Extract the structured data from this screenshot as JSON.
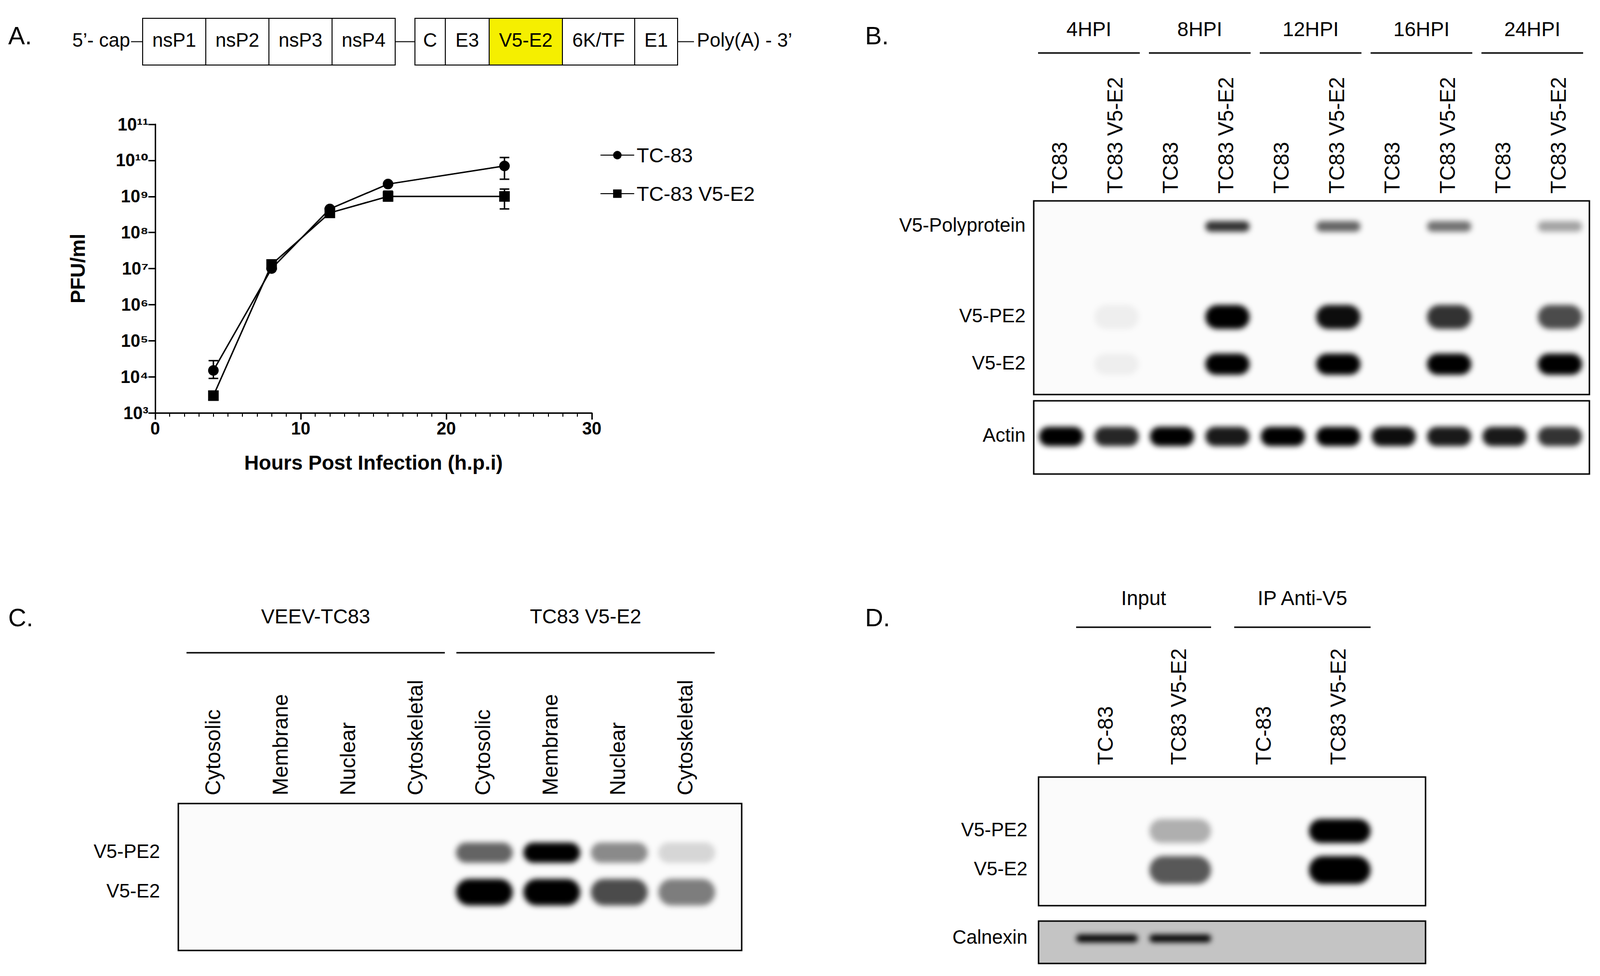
{
  "panel_labels": [
    "A.",
    "B.",
    "C.",
    "D."
  ],
  "schematic": {
    "start": "5’- cap",
    "nonstructural": [
      "nsP1",
      "nsP2",
      "nsP3",
      "nsP4"
    ],
    "structural": [
      "C",
      "E3",
      "V5-E2",
      "6K/TF",
      "E1"
    ],
    "highlight": "V5-E2",
    "color": "#f5ef00",
    "end": "Poly(A) - 3’"
  },
  "chart_data": {
    "type": "line",
    "xlabel": "Hours Post Infection (h.p.i)",
    "ylabel": "PFU/ml",
    "x": [
      4,
      8,
      12,
      16,
      24
    ],
    "series": [
      {
        "name": "TC-83",
        "color": "#000000",
        "marker": "circle",
        "values": [
          15000,
          10000000,
          450000000,
          2200000000,
          7000000000
        ],
        "error_bars": [
          [
            9000,
            28000
          ],
          null,
          null,
          null,
          [
            3000000000,
            12000000000
          ]
        ]
      },
      {
        "name": "TC-83 V5-E2",
        "color": "#000000",
        "marker": "square",
        "values": [
          3000,
          13000000,
          350000000,
          1000000000,
          1000000000
        ],
        "error_bars": [
          null,
          null,
          null,
          [
            750000000,
            1400000000
          ],
          [
            450000000,
            1600000000
          ]
        ]
      }
    ],
    "xlim": [
      0,
      30
    ],
    "xticks": [
      0,
      10,
      20,
      30
    ],
    "ylim": [
      1000,
      100000000000
    ],
    "yticks": [
      {
        "value": 1000,
        "label": "10³"
      },
      {
        "value": 10000,
        "label": "10⁴"
      },
      {
        "value": 100000,
        "label": "10⁵"
      },
      {
        "value": 1000000,
        "label": "10⁶"
      },
      {
        "value": 10000000,
        "label": "10⁷"
      },
      {
        "value": 100000000,
        "label": "10⁸"
      },
      {
        "value": 1000000000,
        "label": "10⁹"
      },
      {
        "value": 10000000000,
        "label": "10¹⁰"
      },
      {
        "value": 100000000000,
        "label": "10¹¹"
      }
    ],
    "log": "y",
    "grid": false,
    "legend": "right"
  },
  "blots": [
    {
      "groups": [
        {
          "name": "4HPI",
          "lanes": [
            "TC83",
            "TC83 V5-E2"
          ]
        },
        {
          "name": "8HPI",
          "lanes": [
            "TC83",
            "TC83 V5-E2"
          ]
        },
        {
          "name": "12HPI",
          "lanes": [
            "TC83",
            "TC83 V5-E2"
          ]
        },
        {
          "name": "16HPI",
          "lanes": [
            "TC83",
            "TC83 V5-E2"
          ]
        },
        {
          "name": "24HPI",
          "lanes": [
            "TC83",
            "TC83 V5-E2"
          ]
        }
      ],
      "rows": [
        {
          "label": "V5-Polyprotein",
          "bands": [
            0,
            0,
            0,
            0.8,
            0,
            0.6,
            0,
            0.55,
            0,
            0.35
          ]
        },
        {
          "label": "V5-PE2",
          "bands": [
            0,
            0.05,
            0,
            1,
            0,
            0.95,
            0,
            0.8,
            0,
            0.7
          ]
        },
        {
          "label": "V5-E2",
          "bands": [
            0,
            0.05,
            0,
            1,
            0,
            1,
            0,
            1,
            0,
            1
          ]
        }
      ],
      "loading_rows": [
        {
          "label": "Actin",
          "bands": [
            1,
            0.85,
            1,
            0.9,
            1,
            1,
            0.95,
            0.9,
            0.9,
            0.8
          ]
        }
      ]
    },
    {
      "groups": [
        {
          "name": "VEEV-TC83",
          "lanes": [
            "Cytosolic",
            "Membrane",
            "Nuclear",
            "Cytoskeletal"
          ]
        },
        {
          "name": "TC83 V5-E2",
          "lanes": [
            "Cytosolic",
            "Membrane",
            "Nuclear",
            "Cytoskeletal"
          ]
        }
      ],
      "rows": [
        {
          "label": "V5-PE2",
          "bands": [
            0,
            0,
            0,
            0,
            0.6,
            1,
            0.45,
            0.15
          ]
        },
        {
          "label": "V5-E2",
          "bands": [
            0,
            0,
            0,
            0,
            1,
            1,
            0.7,
            0.5
          ]
        }
      ],
      "loading_rows": []
    },
    {
      "groups": [
        {
          "name": "Input",
          "lanes": [
            "TC-83",
            "TC83 V5-E2"
          ]
        },
        {
          "name": "IP Anti-V5",
          "lanes": [
            "TC-83",
            "TC83 V5-E2"
          ]
        }
      ],
      "rows": [
        {
          "label": "V5-PE2",
          "bands": [
            0,
            0.3,
            0,
            1
          ]
        },
        {
          "label": "V5-E2",
          "bands": [
            0,
            0.65,
            0,
            1
          ]
        }
      ],
      "loading_rows": [
        {
          "label": "Calnexin",
          "bands": [
            1,
            1,
            0,
            0
          ]
        }
      ]
    }
  ]
}
